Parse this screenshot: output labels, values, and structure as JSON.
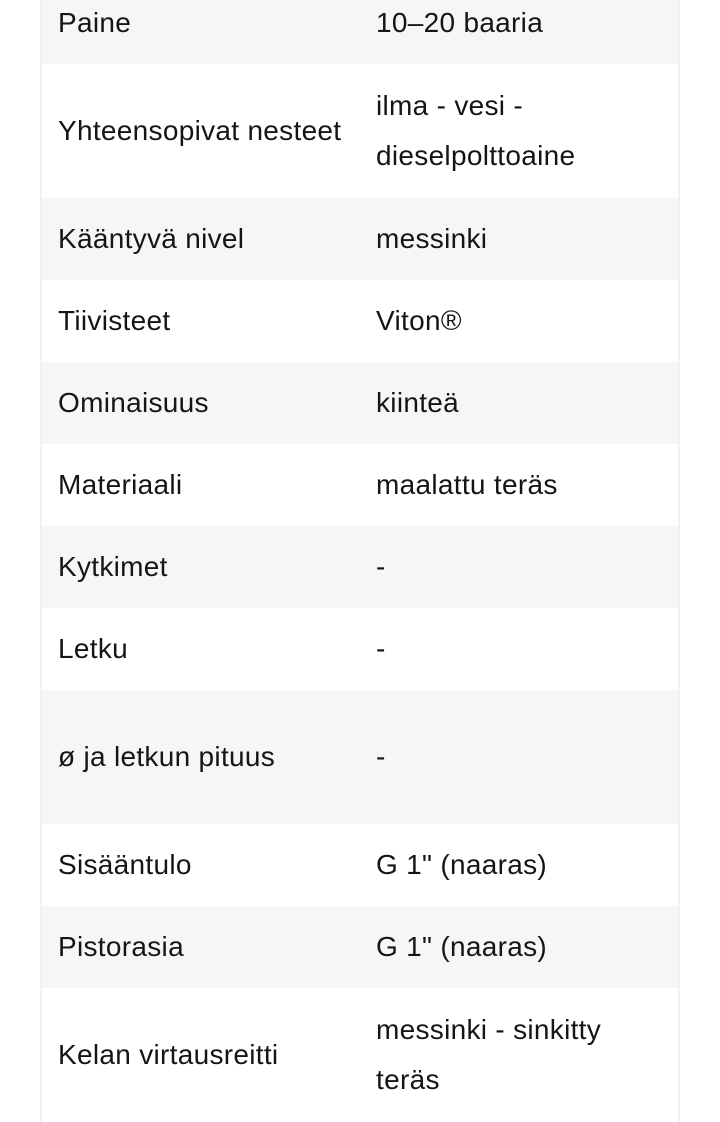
{
  "specs": [
    {
      "label": "Paine",
      "value": "10–20 baaria"
    },
    {
      "label": "Yhteensopivat nesteet",
      "value": "ilma - vesi - dieselpolttoaine"
    },
    {
      "label": "Kääntyvä nivel",
      "value": "messinki"
    },
    {
      "label": "Tiivisteet",
      "value": "Viton®"
    },
    {
      "label": "Ominaisuus",
      "value": "kiinteä"
    },
    {
      "label": "Materiaali",
      "value": "maalattu teräs"
    },
    {
      "label": "Kytkimet",
      "value": "-"
    },
    {
      "label": "Letku",
      "value": "-"
    },
    {
      "label": "ø ja letkun pituus",
      "value": "-"
    },
    {
      "label": "Sisääntulo",
      "value": "G 1\" (naaras)"
    },
    {
      "label": "Pistorasia",
      "value": "G 1\" (naaras)"
    },
    {
      "label": "Kelan virtausreitti",
      "value": "messinki - sinkitty teräs"
    }
  ]
}
